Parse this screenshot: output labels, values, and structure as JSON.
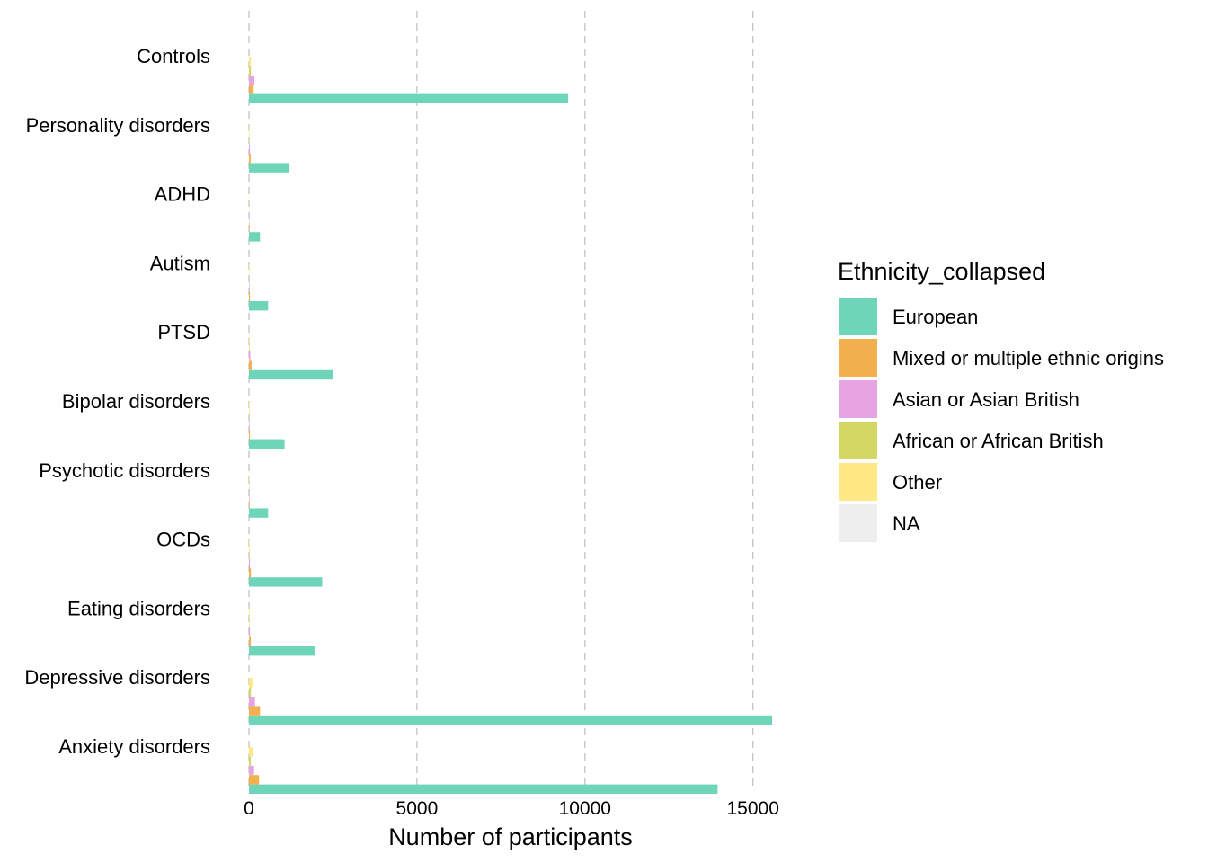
{
  "chart_data": {
    "type": "bar",
    "orientation": "horizontal",
    "categories": [
      "Controls",
      "Personality disorders",
      "ADHD",
      "Autism",
      "PTSD",
      "Bipolar disorders",
      "Psychotic disorders",
      "OCDs",
      "Eating disorders",
      "Depressive disorders",
      "Anxiety disorders"
    ],
    "series": [
      {
        "name": "European",
        "color": "#6ED5B9",
        "values": [
          9500,
          1200,
          330,
          570,
          2500,
          1060,
          570,
          2180,
          1980,
          15570,
          13950
        ]
      },
      {
        "name": "Mixed or multiple ethnic origins",
        "color": "#F2B14E",
        "values": [
          140,
          50,
          15,
          30,
          80,
          30,
          20,
          60,
          55,
          330,
          300
        ]
      },
      {
        "name": "Asian or Asian British",
        "color": "#E6A4E2",
        "values": [
          160,
          30,
          10,
          15,
          40,
          20,
          15,
          30,
          30,
          180,
          150
        ]
      },
      {
        "name": "African or African British",
        "color": "#D4D764",
        "values": [
          60,
          10,
          5,
          5,
          20,
          10,
          10,
          15,
          10,
          60,
          55
        ]
      },
      {
        "name": "Other",
        "color": "#FFE985",
        "values": [
          60,
          20,
          5,
          20,
          20,
          20,
          10,
          20,
          25,
          130,
          110
        ]
      },
      {
        "name": "NA",
        "color": "#EEEEEE",
        "values": [
          0,
          0,
          0,
          0,
          0,
          0,
          0,
          0,
          0,
          0,
          0
        ]
      }
    ],
    "xlabel": "Number of participants",
    "ylabel": "",
    "xlim": [
      0,
      15570
    ],
    "xticks": [
      0,
      5000,
      10000,
      15000
    ],
    "xtick_labels": [
      "0",
      "5000",
      "10000",
      "15000"
    ],
    "grid": "vertical dashed major",
    "legend": {
      "title": "Ethnicity_collapsed",
      "placement": "right"
    }
  }
}
